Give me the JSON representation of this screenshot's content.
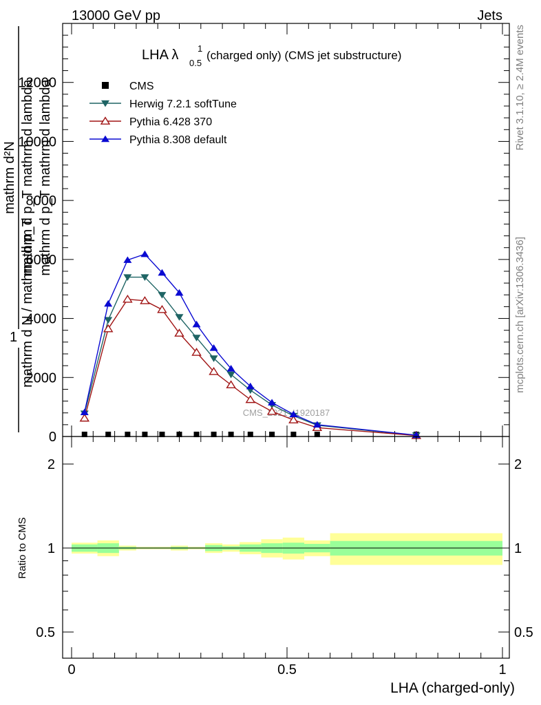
{
  "header": {
    "left_label": "13000 GeV pp",
    "right_label": "Jets",
    "side_rivet": "Rivet 3.1.10, ≥ 2.4M events",
    "side_mcplots": "mcplots.cern.ch [arXiv:1306.3436]",
    "watermark": "CMS_2021_I1920187"
  },
  "chart_data": [
    {
      "type": "line",
      "title_main": "LHA λ",
      "title_sup": "1",
      "title_sub": "0.5",
      "title_rest": "(charged only) (CMS jet substructure)",
      "ylabel_top_num": "mathrm d²N",
      "ylabel_top_den": "mathrm d p_T mathrm d lambda",
      "ylabel_one": "1",
      "ylabel_bottom_den": "mathrm d N / mathrm d p_T",
      "ylabel_mid": "mathrm d p_T mathrm d lambda",
      "xlim": [
        -0.03,
        1.0
      ],
      "ylim": [
        0,
        14000
      ],
      "yticks": [
        0,
        2000,
        4000,
        6000,
        8000,
        10000,
        12000
      ],
      "ytick_labels": [
        "0",
        "2000",
        "4000",
        "6000",
        "8000",
        "10000",
        "12000"
      ],
      "x": [
        0.03,
        0.085,
        0.13,
        0.17,
        0.21,
        0.25,
        0.29,
        0.33,
        0.37,
        0.415,
        0.465,
        0.515,
        0.57,
        0.8
      ],
      "series": [
        {
          "name": "CMS",
          "marker": "square",
          "color": "#000000",
          "values": [
            0,
            0,
            0,
            0,
            0,
            0,
            0,
            0,
            0,
            0,
            0,
            0,
            0,
            0
          ]
        },
        {
          "name": "Herwig 7.2.1 softTune",
          "marker": "triangle-down",
          "color": "#1e6464",
          "values": [
            780,
            3950,
            5400,
            5400,
            4800,
            4050,
            3350,
            2650,
            2100,
            1570,
            1070,
            700,
            380,
            40
          ]
        },
        {
          "name": "Pythia 6.428 370",
          "marker": "triangle-up-open",
          "color": "#a01414",
          "values": [
            620,
            3650,
            4650,
            4600,
            4300,
            3500,
            2850,
            2200,
            1750,
            1250,
            850,
            560,
            300,
            30
          ]
        },
        {
          "name": "Pythia 8.308 default",
          "marker": "triangle-up",
          "color": "#0a0ad2",
          "values": [
            820,
            4500,
            5980,
            6180,
            5550,
            4870,
            3800,
            3000,
            2300,
            1700,
            1150,
            750,
            400,
            45
          ]
        }
      ]
    },
    {
      "type": "area",
      "ylabel": "Ratio to CMS",
      "xlabel": "LHA (charged-only)",
      "xlim": [
        -0.03,
        1.0
      ],
      "ylim": [
        0.32,
        2.3
      ],
      "xticks": [
        0,
        0.5,
        1
      ],
      "xtick_labels": [
        "0",
        "0.5",
        "1"
      ],
      "yticks": [
        0.5,
        1,
        2
      ],
      "ytick_labels": [
        "0.5",
        "1",
        "2"
      ],
      "bands": {
        "edges": [
          0,
          0.06,
          0.11,
          0.15,
          0.19,
          0.23,
          0.27,
          0.31,
          0.35,
          0.39,
          0.44,
          0.49,
          0.54,
          0.6,
          1.0
        ],
        "outer_color": "#ffff99",
        "inner_color": "#99ff99",
        "outer": [
          [
            0.955,
            1.045
          ],
          [
            0.935,
            1.065
          ],
          [
            0.98,
            1.02
          ],
          [
            0.99,
            1.01
          ],
          [
            0.99,
            1.01
          ],
          [
            0.98,
            1.02
          ],
          [
            0.99,
            1.01
          ],
          [
            0.96,
            1.04
          ],
          [
            0.97,
            1.03
          ],
          [
            0.95,
            1.05
          ],
          [
            0.925,
            1.075
          ],
          [
            0.91,
            1.09
          ],
          [
            0.935,
            1.065
          ],
          [
            0.87,
            1.13
          ]
        ],
        "inner": [
          [
            0.97,
            1.03
          ],
          [
            0.96,
            1.04
          ],
          [
            0.99,
            1.01
          ],
          [
            0.995,
            1.005
          ],
          [
            0.995,
            1.005
          ],
          [
            0.99,
            1.01
          ],
          [
            0.995,
            1.005
          ],
          [
            0.975,
            1.025
          ],
          [
            0.985,
            1.015
          ],
          [
            0.97,
            1.03
          ],
          [
            0.96,
            1.04
          ],
          [
            0.955,
            1.045
          ],
          [
            0.965,
            1.035
          ],
          [
            0.94,
            1.06
          ]
        ]
      }
    }
  ]
}
